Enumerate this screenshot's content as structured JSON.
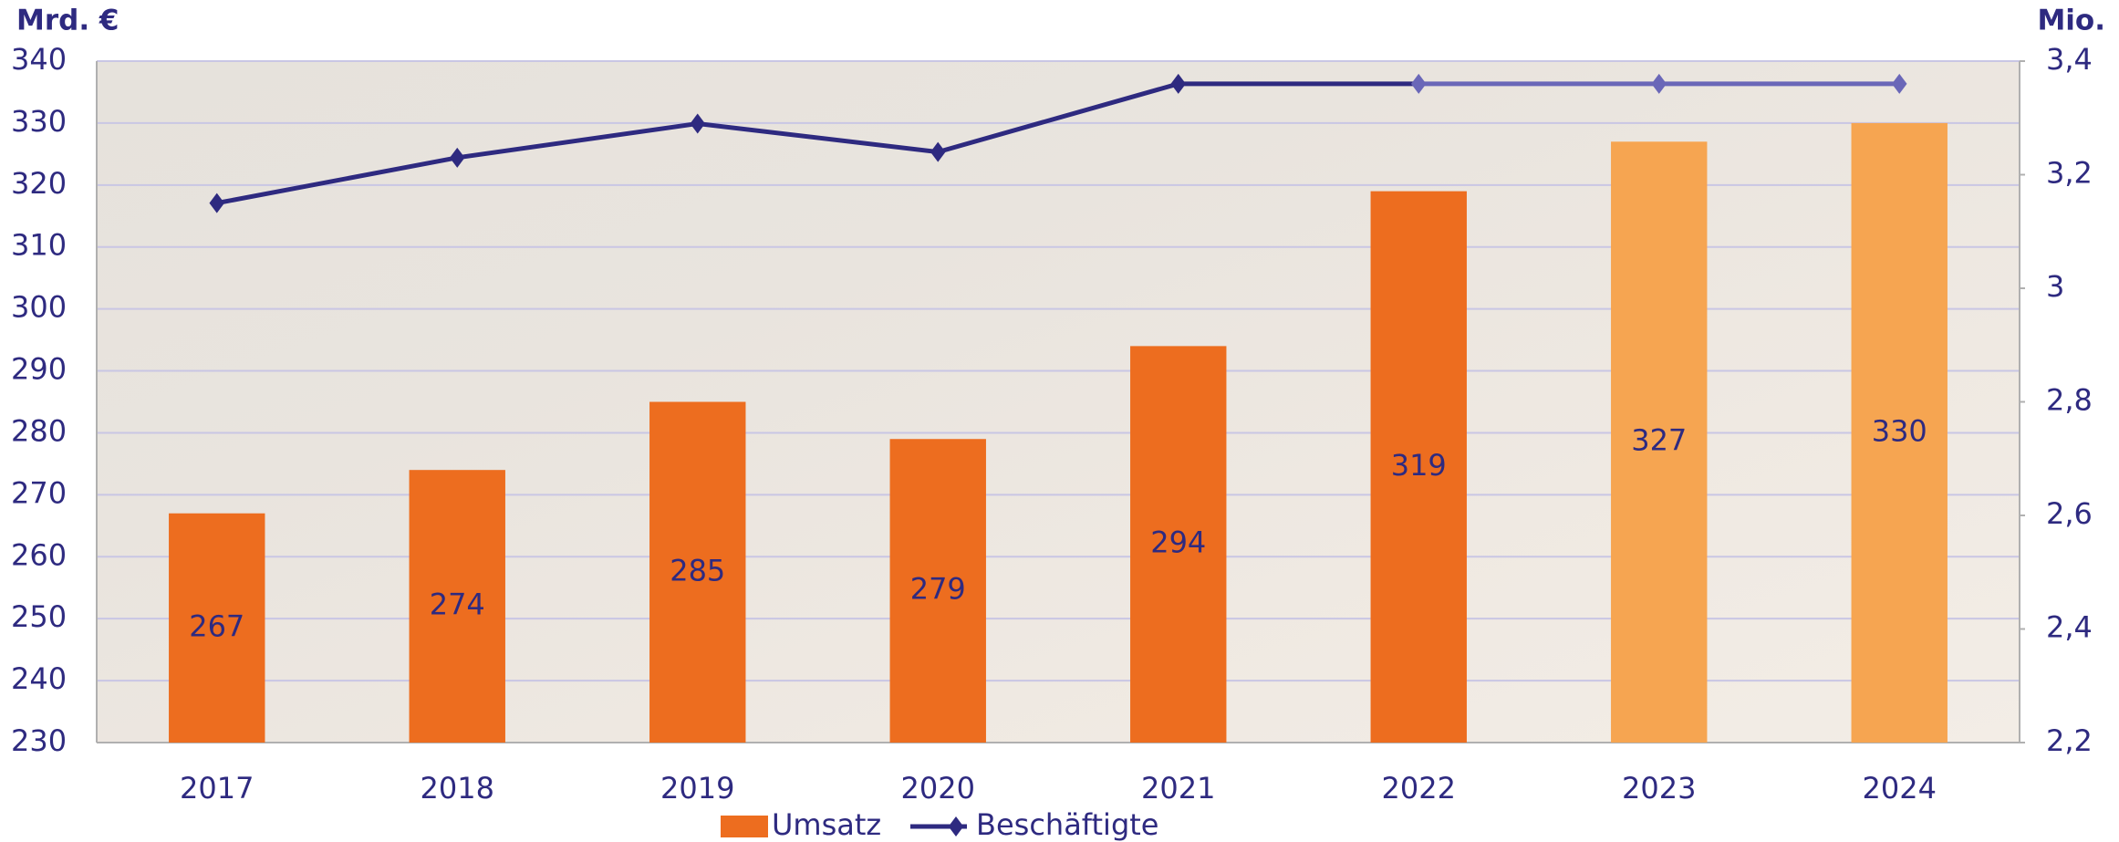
{
  "chart_data": {
    "type": "combo",
    "ylabel": "Mrd. €",
    "y2label": "Mio.",
    "categories": [
      "2017",
      "2018",
      "2019",
      "2020",
      "2021",
      "2022",
      "2023",
      "2024"
    ],
    "ylim": [
      230,
      340
    ],
    "yticks": [
      230,
      240,
      250,
      260,
      270,
      280,
      290,
      300,
      310,
      320,
      330,
      340
    ],
    "y2lim": [
      2.2,
      3.4
    ],
    "y2ticks": [
      {
        "value": 2.2,
        "label": "2,2"
      },
      {
        "value": 2.4,
        "label": "2,4"
      },
      {
        "value": 2.6,
        "label": "2,6"
      },
      {
        "value": 2.8,
        "label": "2,8"
      },
      3,
      {
        "value": 3.2,
        "label": "3,2"
      },
      {
        "value": 3.4,
        "label": "3,4"
      }
    ],
    "grid": true,
    "legend": "bottom",
    "series": [
      {
        "name": "Umsatz",
        "type": "bar",
        "color": "#ed6d1f",
        "point_colors": [
          "#ed6d1f",
          "#ed6d1f",
          "#ed6d1f",
          "#ed6d1f",
          "#ed6d1f",
          "#ed6d1f",
          "#f6a551",
          "#f6a551"
        ],
        "values": [
          267,
          274,
          285,
          279,
          294,
          319,
          327,
          330
        ]
      },
      {
        "name": "Beschäftigte",
        "type": "line",
        "axis": "y2",
        "color": "#2e2a80",
        "point_colors": [
          "#2e2a80",
          "#2e2a80",
          "#2e2a80",
          "#2e2a80",
          "#2e2a80",
          "#6a67b8",
          "#6a67b8",
          "#6a67b8"
        ],
        "values": [
          3.15,
          3.23,
          3.29,
          3.24,
          3.36,
          3.36,
          3.36,
          3.36
        ]
      }
    ]
  }
}
